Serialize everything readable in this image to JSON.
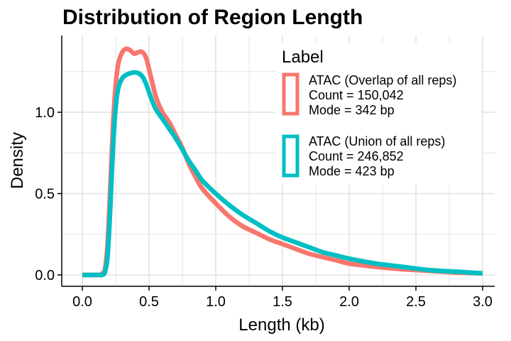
{
  "chart_data": {
    "type": "line",
    "title": "Distribution of Region Length",
    "xlabel": "Length (kb)",
    "ylabel": "Density",
    "xlim": [
      0,
      3.0
    ],
    "ylim": [
      0,
      1.4
    ],
    "xticks": [
      "0.0",
      "0.5",
      "1.0",
      "1.5",
      "2.0",
      "2.5",
      "3.0"
    ],
    "yticks": [
      "0.0",
      "0.5",
      "1.0"
    ],
    "grid": true,
    "legend": {
      "title": "Label",
      "position": "top-right",
      "entries": [
        {
          "color": "#F8766D",
          "lines": [
            "ATAC (Overlap of all reps)",
            "Count = 150,042",
            "Mode = 342 bp"
          ]
        },
        {
          "color": "#00BFC4",
          "lines": [
            "ATAC (Union of all reps)",
            "Count = 246,852",
            "Mode = 423 bp"
          ]
        }
      ]
    },
    "series": [
      {
        "color": "#F8766D",
        "x": [
          0,
          0.12,
          0.15,
          0.17,
          0.19,
          0.21,
          0.23,
          0.25,
          0.27,
          0.3,
          0.33,
          0.36,
          0.39,
          0.42,
          0.45,
          0.48,
          0.51,
          0.55,
          0.6,
          0.65,
          0.7,
          0.75,
          0.8,
          0.85,
          0.9,
          1.0,
          1.1,
          1.2,
          1.3,
          1.4,
          1.5,
          1.6,
          1.7,
          1.8,
          1.9,
          2.0,
          2.2,
          2.4,
          2.6,
          2.8,
          3.0
        ],
        "y": [
          0.0,
          0.0,
          0.01,
          0.04,
          0.2,
          0.55,
          0.92,
          1.17,
          1.3,
          1.37,
          1.39,
          1.38,
          1.36,
          1.37,
          1.37,
          1.33,
          1.23,
          1.1,
          1.0,
          0.94,
          0.86,
          0.78,
          0.68,
          0.6,
          0.53,
          0.44,
          0.36,
          0.3,
          0.26,
          0.22,
          0.19,
          0.16,
          0.13,
          0.11,
          0.09,
          0.07,
          0.05,
          0.035,
          0.025,
          0.015,
          0.01
        ]
      },
      {
        "color": "#00BFC4",
        "x": [
          0,
          0.12,
          0.15,
          0.17,
          0.19,
          0.21,
          0.23,
          0.25,
          0.27,
          0.3,
          0.33,
          0.36,
          0.39,
          0.42,
          0.45,
          0.48,
          0.51,
          0.55,
          0.6,
          0.65,
          0.7,
          0.75,
          0.8,
          0.85,
          0.9,
          1.0,
          1.1,
          1.2,
          1.3,
          1.4,
          1.5,
          1.6,
          1.7,
          1.8,
          1.9,
          2.0,
          2.2,
          2.4,
          2.6,
          2.8,
          3.0
        ],
        "y": [
          0.0,
          0.0,
          0.0,
          0.02,
          0.12,
          0.42,
          0.78,
          1.03,
          1.15,
          1.21,
          1.23,
          1.24,
          1.245,
          1.24,
          1.22,
          1.17,
          1.1,
          1.02,
          0.96,
          0.9,
          0.84,
          0.77,
          0.7,
          0.64,
          0.58,
          0.5,
          0.43,
          0.37,
          0.32,
          0.27,
          0.23,
          0.2,
          0.17,
          0.14,
          0.12,
          0.1,
          0.07,
          0.05,
          0.03,
          0.02,
          0.01
        ]
      }
    ]
  }
}
